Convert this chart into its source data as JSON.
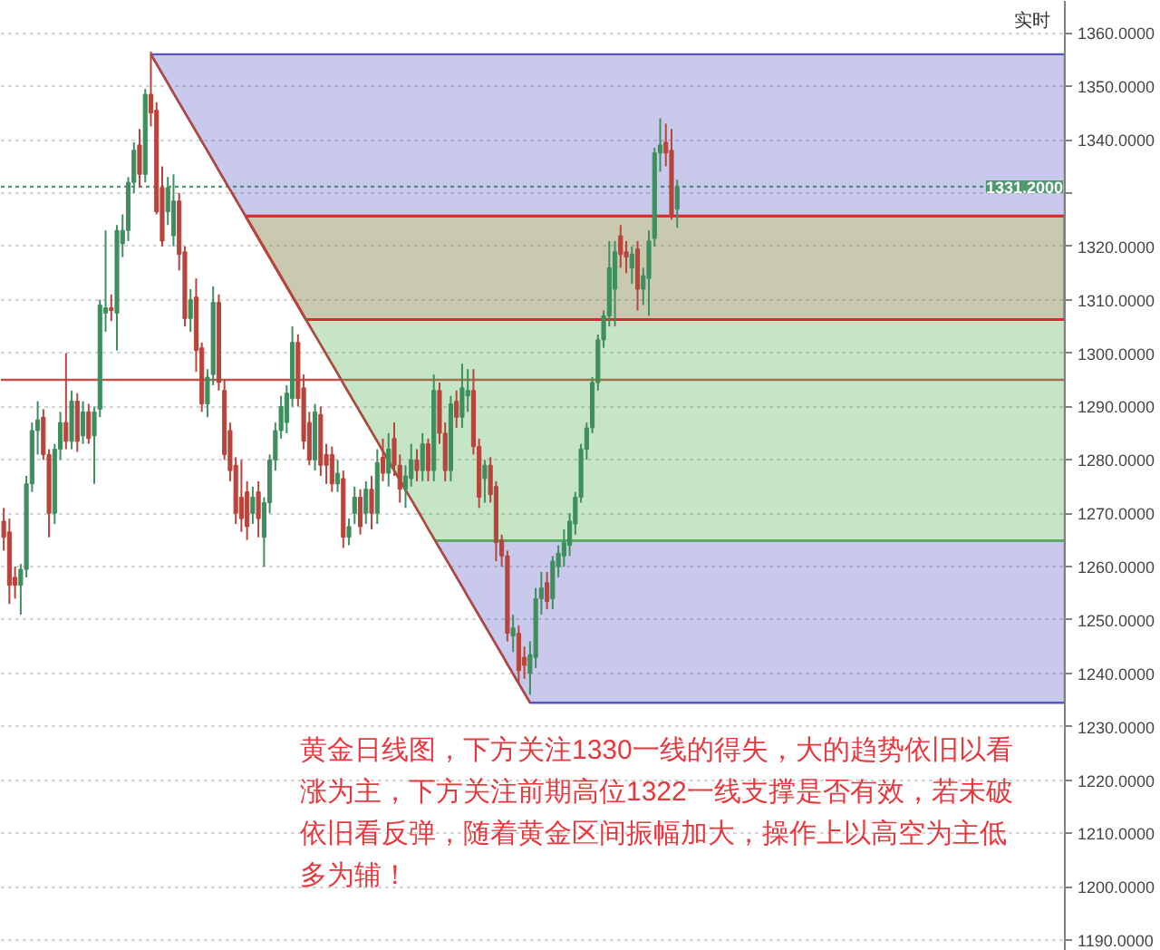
{
  "chart_data": {
    "type": "candlestick",
    "categories": [
      null,
      null,
      null,
      null,
      null,
      null,
      null,
      null,
      null,
      null,
      null,
      null,
      null,
      null,
      null,
      null,
      null,
      null,
      null,
      null,
      null,
      null,
      null,
      null,
      null,
      null,
      null,
      null,
      null,
      null,
      null,
      null,
      null,
      null,
      null,
      null,
      null,
      null,
      null,
      null,
      null,
      null,
      null,
      null,
      null,
      null,
      null,
      null,
      null,
      null,
      null,
      null,
      null,
      null,
      null,
      null,
      null,
      null,
      null,
      null,
      null,
      null,
      null,
      null,
      null,
      null,
      null,
      null,
      null,
      null,
      null,
      null,
      null,
      null,
      null,
      null,
      null,
      null,
      null,
      null,
      null,
      null,
      null,
      null,
      null,
      null,
      null,
      null,
      null,
      null,
      null,
      null,
      null,
      null,
      null,
      null,
      null,
      null,
      null,
      null,
      null,
      null,
      null,
      null,
      null,
      null,
      null,
      null,
      null,
      null,
      null,
      null,
      null,
      null,
      null,
      null,
      null,
      null,
      null,
      null,
      null,
      null,
      null,
      null,
      null,
      null,
      null,
      null,
      null,
      null,
      null,
      null,
      null,
      null,
      null,
      null,
      null,
      null,
      null,
      null,
      null,
      null,
      null,
      null,
      null,
      null,
      null,
      null,
      null,
      null,
      null,
      null,
      null,
      null,
      null,
      null,
      null,
      null,
      null,
      null,
      null,
      null,
      null,
      null,
      null,
      null,
      null,
      null,
      null,
      null,
      null,
      null,
      null,
      null,
      null,
      null,
      null,
      null,
      null,
      null,
      null,
      null,
      null,
      null,
      null,
      null,
      null,
      null
    ],
    "ohlc": [
      [
        1268.5,
        1271,
        1263,
        1265.5
      ],
      [
        1266.5,
        1269,
        1253,
        1256.5
      ],
      [
        1258,
        1260,
        1254,
        1256.5
      ],
      [
        1256.5,
        1260.5,
        1251,
        1259.5
      ],
      [
        1259.5,
        1277,
        1258,
        1275.5
      ],
      [
        1275.5,
        1287,
        1274,
        1285.5
      ],
      [
        1285.5,
        1291,
        1281,
        1287.5
      ],
      [
        1288,
        1289.5,
        1280,
        1281
      ],
      [
        1281,
        1282,
        1265.5,
        1270
      ],
      [
        1270,
        1283,
        1268,
        1282
      ],
      [
        1282,
        1289,
        1280,
        1287
      ],
      [
        1287,
        1300,
        1282,
        1283.5
      ],
      [
        1283.5,
        1293,
        1282,
        1291
      ],
      [
        1291,
        1292.5,
        1281.5,
        1283.5
      ],
      [
        1284.5,
        1291,
        1283,
        1289
      ],
      [
        1289,
        1290.5,
        1283,
        1284
      ],
      [
        1284.5,
        1290,
        1275.5,
        1289
      ],
      [
        1289.5,
        1310,
        1288,
        1309
      ],
      [
        1307.5,
        1323,
        1304,
        1308.5
      ],
      [
        1308.5,
        1311,
        1306,
        1308
      ],
      [
        1307.5,
        1324,
        1300.5,
        1323
      ],
      [
        1320.5,
        1326,
        1318,
        1323
      ],
      [
        1323,
        1333,
        1321,
        1332
      ],
      [
        1332,
        1339.5,
        1330,
        1338
      ],
      [
        1339,
        1342,
        1331,
        1333.5
      ],
      [
        1333.5,
        1349.5,
        1332,
        1348.5
      ],
      [
        1348.5,
        1356.5,
        1342.5,
        1345
      ],
      [
        1345.5,
        1347,
        1326,
        1326.5
      ],
      [
        1331,
        1335,
        1320,
        1321
      ],
      [
        1326.5,
        1333,
        1324,
        1331
      ],
      [
        1322,
        1333.5,
        1320,
        1328.5
      ],
      [
        1328.5,
        1330,
        1315.5,
        1318.5
      ],
      [
        1319,
        1320,
        1305,
        1306.5
      ],
      [
        1306.5,
        1312,
        1304,
        1310
      ],
      [
        1310.5,
        1314,
        1296.5,
        1300.5
      ],
      [
        1301,
        1302,
        1289,
        1290.5
      ],
      [
        1290.5,
        1297,
        1288,
        1295.5
      ],
      [
        1296,
        1312.5,
        1294,
        1309.5
      ],
      [
        1309.5,
        1311,
        1293,
        1294.5
      ],
      [
        1293,
        1295,
        1280,
        1281
      ],
      [
        1285.5,
        1287,
        1276,
        1278
      ],
      [
        1279,
        1280.5,
        1268,
        1270
      ],
      [
        1273,
        1280,
        1266.5,
        1269
      ],
      [
        1274,
        1276,
        1265,
        1267.5
      ],
      [
        1270,
        1275,
        1268,
        1273
      ],
      [
        1274,
        1276,
        1265.5,
        1269
      ],
      [
        1265.5,
        1273,
        1260,
        1272
      ],
      [
        1272,
        1281,
        1270,
        1280
      ],
      [
        1280,
        1287,
        1278,
        1285.5
      ],
      [
        1285.5,
        1292,
        1284,
        1290
      ],
      [
        1287,
        1294,
        1285,
        1292.5
      ],
      [
        1291.5,
        1305,
        1290,
        1302
      ],
      [
        1302,
        1303.5,
        1290,
        1291.5
      ],
      [
        1293.5,
        1296,
        1282,
        1283.5
      ],
      [
        1287,
        1289,
        1279,
        1280
      ],
      [
        1280,
        1290.5,
        1278,
        1289
      ],
      [
        1288.5,
        1290,
        1277,
        1279
      ],
      [
        1281,
        1283,
        1275.5,
        1279
      ],
      [
        1281,
        1282.5,
        1274,
        1275.5
      ],
      [
        1275.5,
        1280,
        1274,
        1277.5
      ],
      [
        1276.5,
        1278,
        1263.5,
        1265.5
      ],
      [
        1265.5,
        1269,
        1264,
        1267.5
      ],
      [
        1270,
        1275,
        1268,
        1273
      ],
      [
        1273,
        1274.5,
        1266,
        1267.5
      ],
      [
        1270,
        1276,
        1268,
        1274.5
      ],
      [
        1274.5,
        1277,
        1267,
        1270
      ],
      [
        1270,
        1282,
        1268,
        1279.5
      ],
      [
        1280.5,
        1284,
        1276,
        1277.5
      ],
      [
        1277.5,
        1285,
        1275,
        1282
      ],
      [
        1284,
        1287,
        1277,
        1279
      ],
      [
        1279,
        1281,
        1272,
        1274.5
      ],
      [
        1274.5,
        1279,
        1271,
        1277
      ],
      [
        1276.5,
        1283,
        1275,
        1280
      ],
      [
        1280,
        1282,
        1276,
        1278
      ],
      [
        1278,
        1285,
        1276,
        1283
      ],
      [
        1283,
        1284,
        1276,
        1278
      ],
      [
        1278,
        1296,
        1276,
        1293
      ],
      [
        1293,
        1294.5,
        1283,
        1285
      ],
      [
        1285,
        1287,
        1276,
        1278
      ],
      [
        1278,
        1292,
        1276,
        1290.5
      ],
      [
        1291,
        1293,
        1286,
        1288
      ],
      [
        1288,
        1298,
        1286,
        1293.5
      ],
      [
        1292,
        1297,
        1289,
        1293
      ],
      [
        1293,
        1297,
        1281,
        1282.5
      ],
      [
        1282.5,
        1284,
        1271,
        1273
      ],
      [
        1276.5,
        1280,
        1272,
        1279
      ],
      [
        1279,
        1280.5,
        1272,
        1273.5
      ],
      [
        1275,
        1276,
        1261,
        1264.5
      ],
      [
        1265,
        1266,
        1260,
        1262
      ],
      [
        1262,
        1263,
        1246,
        1247.5
      ],
      [
        1247,
        1251,
        1244,
        1248.5
      ],
      [
        1247.5,
        1249,
        1238,
        1240.5
      ],
      [
        1243,
        1245,
        1239,
        1241.5
      ],
      [
        1240,
        1246,
        1236,
        1243.5
      ],
      [
        1243,
        1256,
        1241,
        1254
      ],
      [
        1254,
        1259,
        1251,
        1256
      ],
      [
        1257,
        1259,
        1252,
        1253.5
      ],
      [
        1254,
        1262,
        1252,
        1261
      ],
      [
        1260,
        1264,
        1258,
        1262.5
      ],
      [
        1262,
        1267,
        1260,
        1264.5
      ],
      [
        1264,
        1270,
        1262,
        1268.5
      ],
      [
        1268,
        1274,
        1266,
        1273
      ],
      [
        1273,
        1283,
        1272,
        1282
      ],
      [
        1282,
        1287,
        1280,
        1286
      ],
      [
        1286,
        1295.5,
        1285,
        1294.5
      ],
      [
        1294.5,
        1303.5,
        1293,
        1302.5
      ],
      [
        1302.5,
        1308,
        1301,
        1307
      ],
      [
        1307,
        1321,
        1305,
        1316
      ],
      [
        1312,
        1321,
        1305,
        1319
      ],
      [
        1322,
        1324,
        1316,
        1318.5
      ],
      [
        1319,
        1321,
        1315,
        1318
      ],
      [
        1316,
        1320,
        1313,
        1318.5
      ],
      [
        1319.5,
        1321,
        1308,
        1312
      ],
      [
        1312,
        1316,
        1309,
        1314.5
      ],
      [
        1314,
        1323,
        1307,
        1321
      ],
      [
        1321.5,
        1338.5,
        1320,
        1337.5
      ],
      [
        1337.5,
        1344,
        1334,
        1339
      ],
      [
        1339.5,
        1343,
        1335,
        1337.5
      ],
      [
        1338,
        1342,
        1325,
        1326
      ],
      [
        1327,
        1332.5,
        1323.5,
        1331.2
      ],
      null,
      null,
      null,
      null,
      null,
      null,
      null,
      null,
      null,
      null,
      null,
      null,
      null,
      null,
      null,
      null,
      null,
      null,
      null,
      null,
      null,
      null,
      null,
      null,
      null,
      null,
      null,
      null,
      null,
      null,
      null,
      null,
      null,
      null,
      null,
      null,
      null,
      null,
      null,
      null,
      null,
      null,
      null,
      null,
      null,
      null,
      null,
      null,
      null,
      null,
      null,
      null,
      null,
      null,
      null,
      null,
      null,
      null,
      null,
      null,
      null,
      null,
      null,
      null,
      null,
      null,
      null,
      null
    ],
    "colors": [
      "#b8443c",
      "#b8443c",
      "#b8443c",
      "#3e8e5e",
      "#3e8e5e",
      "#3e8e5e",
      "#3e8e5e",
      "#b8443c",
      "#b8443c",
      "#3e8e5e",
      "#3e8e5e",
      "#b8443c",
      "#3e8e5e",
      "#b8443c",
      "#3e8e5e",
      "#b8443c",
      "#3e8e5e",
      "#3e8e5e",
      "#3e8e5e",
      "#b8443c",
      "#3e8e5e",
      "#3e8e5e",
      "#3e8e5e",
      "#3e8e5e",
      "#b8443c",
      "#3e8e5e",
      "#b8443c",
      "#b8443c",
      "#b8443c",
      "#3e8e5e",
      "#3e8e5e",
      "#b8443c",
      "#b8443c",
      "#3e8e5e",
      "#b8443c",
      "#b8443c",
      "#3e8e5e",
      "#3e8e5e",
      "#b8443c",
      "#b8443c",
      "#b8443c",
      "#b8443c",
      "#b8443c",
      "#b8443c",
      "#3e8e5e",
      "#b8443c",
      "#3e8e5e",
      "#3e8e5e",
      "#3e8e5e",
      "#3e8e5e",
      "#3e8e5e",
      "#3e8e5e",
      "#b8443c",
      "#b8443c",
      "#b8443c",
      "#3e8e5e",
      "#b8443c",
      "#b8443c",
      "#b8443c",
      "#3e8e5e",
      "#b8443c",
      "#3e8e5e",
      "#3e8e5e",
      "#b8443c",
      "#3e8e5e",
      "#b8443c",
      "#3e8e5e",
      "#b8443c",
      "#3e8e5e",
      "#b8443c",
      "#b8443c",
      "#3e8e5e",
      "#3e8e5e",
      "#b8443c",
      "#3e8e5e",
      "#b8443c",
      "#3e8e5e",
      "#b8443c",
      "#b8443c",
      "#3e8e5e",
      "#b8443c",
      "#3e8e5e",
      "#3e8e5e",
      "#b8443c",
      "#b8443c",
      "#3e8e5e",
      "#b8443c",
      "#b8443c",
      "#b8443c",
      "#b8443c",
      "#3e8e5e",
      "#b8443c",
      "#b8443c",
      "#3e8e5e",
      "#3e8e5e",
      "#3e8e5e",
      "#b8443c",
      "#3e8e5e",
      "#3e8e5e",
      "#3e8e5e",
      "#3e8e5e",
      "#3e8e5e",
      "#3e8e5e",
      "#3e8e5e",
      "#3e8e5e",
      "#3e8e5e",
      "#3e8e5e",
      "#3e8e5e",
      "#3e8e5e",
      "#b8443c",
      "#b8443c",
      "#3e8e5e",
      "#b8443c",
      "#3e8e5e",
      "#3e8e5e",
      "#3e8e5e",
      "#3e8e5e",
      "#b8443c",
      "#b8443c",
      "#3e8e5e",
      null,
      null,
      null,
      null,
      null,
      null,
      null,
      null,
      null,
      null,
      null,
      null,
      null,
      null,
      null,
      null,
      null,
      null,
      null,
      null,
      null,
      null,
      null,
      null,
      null,
      null,
      null,
      null,
      null,
      null,
      null,
      null,
      null,
      null,
      null,
      null,
      null,
      null,
      null,
      null,
      null,
      null,
      null,
      null,
      null,
      null,
      null,
      null,
      null,
      null,
      null,
      null,
      null,
      null,
      null,
      null,
      null,
      null,
      null,
      null,
      null,
      null,
      null,
      null,
      null,
      null,
      null,
      null
    ],
    "series": [
      {
        "type": "line",
        "color": "#b04a40",
        "values": [
          null,
          null,
          null,
          null,
          null,
          null,
          null,
          null,
          null,
          null,
          null,
          null,
          null,
          null,
          null,
          null,
          null,
          null,
          null,
          null,
          null,
          null,
          null,
          null,
          null,
          null,
          1356.0,
          1354.2,
          1352.4,
          1350.6,
          1348.7,
          1346.9,
          1345.1,
          1343.3,
          1341.5,
          1339.7,
          1337.9,
          1336.1,
          1334.2,
          1332.4,
          1330.6,
          1328.8,
          1327.0,
          1325.2,
          1323.4,
          1321.5,
          1319.7,
          1317.9,
          1316.1,
          1314.3,
          1312.5,
          1310.7,
          1308.9,
          1307.0,
          1305.2,
          1303.4,
          1301.6,
          1299.8,
          1298.0,
          1296.2,
          1294.3,
          1292.5,
          1290.7,
          1288.9,
          1287.1,
          1285.3,
          1283.5,
          1281.6,
          1279.8,
          1278.0,
          1276.2,
          1274.4,
          1272.6,
          1270.8,
          1269.0,
          1267.1,
          1265.3,
          1263.5,
          1261.7,
          1259.9,
          1258.1,
          1256.3,
          1254.4,
          1252.6,
          1250.8,
          1249.0,
          1247.2,
          1245.4,
          1243.6,
          1241.7,
          1239.9,
          1238.1,
          1236.3,
          1234.5,
          null,
          null,
          null,
          null,
          null,
          null,
          null,
          null,
          null,
          null,
          null,
          null,
          null,
          null,
          null,
          null,
          null,
          null,
          null,
          null,
          null,
          null,
          null,
          null,
          null,
          null,
          null,
          null,
          null,
          null,
          null,
          null,
          null,
          null,
          null,
          null,
          null,
          null,
          null,
          null,
          null,
          null,
          null,
          null,
          null,
          null,
          null,
          null,
          null,
          null,
          null,
          null,
          null,
          null,
          null,
          null,
          null,
          null,
          null,
          null,
          null,
          null,
          null,
          null,
          null,
          null,
          null,
          null,
          null,
          null,
          null,
          null,
          null,
          null,
          null,
          null,
          null,
          null,
          null,
          null,
          null,
          null,
          null,
          null,
          null,
          null,
          null,
          null,
          null,
          null,
          null,
          null,
          null,
          null
        ]
      }
    ],
    "bands": [
      {
        "axis": "y",
        "from": 1325.6,
        "to": 1356.0,
        "color": "#5656c2"
      },
      {
        "axis": "y",
        "from": 1234.5,
        "to": 1264.9,
        "color": "#5656c2"
      },
      {
        "axis": "y",
        "from": 1264.9,
        "to": 1325.6,
        "color": "#4fae4f"
      },
      {
        "axis": "y",
        "from": 1306.3,
        "to": 1325.7,
        "color": "#e0282e"
      }
    ],
    "ref_lines": [
      {
        "axis": "y",
        "value": 1295,
        "color": "#c8504b"
      },
      {
        "axis": "y",
        "value": 1331.2,
        "label": "1331.2000",
        "color": "#4e9a6e",
        "line_style": "dotted"
      }
    ],
    "ylim": [
      1188,
      1366
    ],
    "yticks": [
      {
        "value": 1190,
        "label": "1190.0000"
      },
      {
        "value": 1200,
        "label": "1200.0000"
      },
      {
        "value": 1210,
        "label": "1210.0000"
      },
      {
        "value": 1220,
        "label": "1220.0000"
      },
      {
        "value": 1230,
        "label": "1230.0000"
      },
      {
        "value": 1240,
        "label": "1240.0000"
      },
      {
        "value": 1250,
        "label": "1250.0000"
      },
      {
        "value": 1260,
        "label": "1260.0000"
      },
      {
        "value": 1270,
        "label": "1270.0000"
      },
      {
        "value": 1280,
        "label": "1280.0000"
      },
      {
        "value": 1290,
        "label": "1290.0000"
      },
      {
        "value": 1300,
        "label": "1300.0000"
      },
      {
        "value": 1310,
        "label": "1310.0000"
      },
      {
        "value": 1320,
        "label": "1320.0000"
      },
      {
        "value": 1330,
        "label": null
      },
      {
        "value": 1340,
        "label": "1340.0000"
      },
      {
        "value": 1350,
        "label": "1350.0000"
      },
      {
        "value": 1360,
        "label": "1360.0000"
      }
    ],
    "tick_labels": "y",
    "grid": "y",
    "annotations": [
      "实时",
      "黄金日线图，下方关注1330一线的得失，大的趋势依旧以看涨为主，下方关注前期高位1322一线支撑是否有效，若未破依旧看反弹，随着黄金区间振幅加大，操作上以高空为主低多为辅！"
    ]
  }
}
